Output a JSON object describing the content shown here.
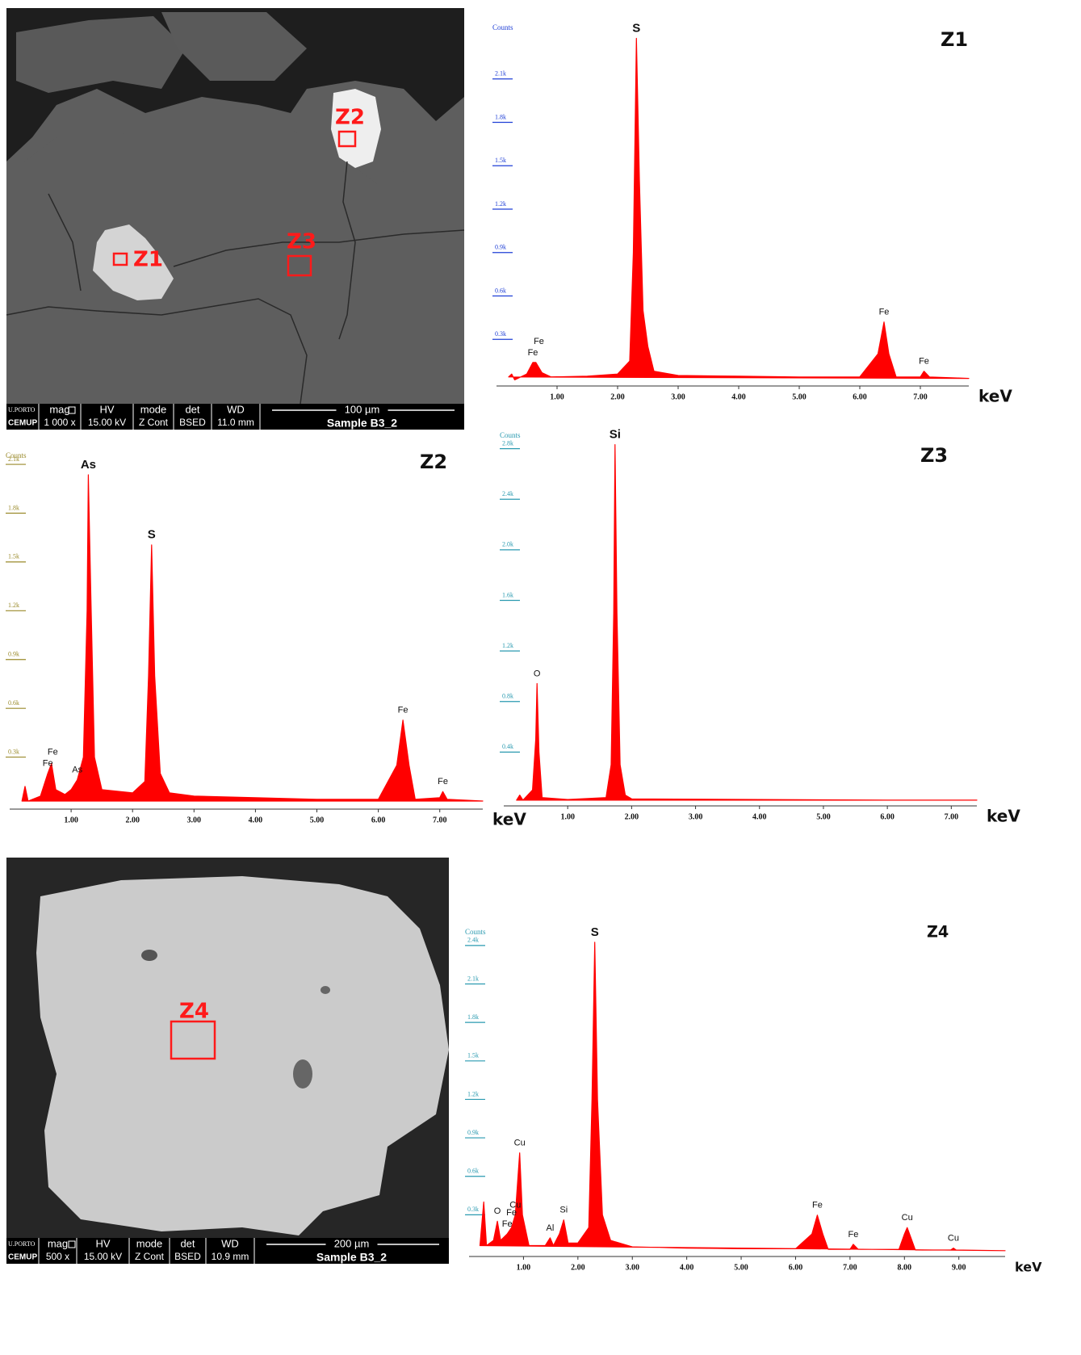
{
  "images": [
    {
      "zones": [
        "Z1",
        "Z2",
        "Z3"
      ],
      "info": {
        "logo": "U.PORTO",
        "lab": "CEMUP",
        "headers": [
          "mag",
          "HV",
          "mode",
          "det",
          "WD"
        ],
        "values": [
          "1 000 x",
          "15.00 kV",
          "Z Cont",
          "BSED",
          "11.0 mm"
        ],
        "scale": "100 µm",
        "sample": "Sample B3_2"
      }
    },
    {
      "zones": [
        "Z4"
      ],
      "info": {
        "logo": "U.PORTO",
        "lab": "CEMUP",
        "headers": [
          "mag",
          "HV",
          "mode",
          "det",
          "WD"
        ],
        "values": [
          "500 x",
          "15.00 kV",
          "Z Cont",
          "BSED",
          "10.9 mm"
        ],
        "scale": "200 µm",
        "sample": "Sample B3_2"
      }
    }
  ],
  "chart_data": [
    {
      "type": "area",
      "title": "Z1",
      "x_label": "keV",
      "y_label": "Counts",
      "color": "#ff0000",
      "tick_color": "#1f3fd6",
      "x": [
        0.2,
        0.25,
        0.3,
        0.5,
        0.6,
        0.65,
        0.75,
        0.9,
        1.5,
        2.0,
        2.2,
        2.26,
        2.31,
        2.36,
        2.42,
        2.5,
        2.6,
        3.0,
        4.0,
        5.0,
        6.0,
        6.3,
        6.4,
        6.48,
        6.6,
        7.0,
        7.06,
        7.15,
        7.8
      ],
      "values": [
        40,
        60,
        20,
        60,
        140,
        140,
        70,
        40,
        45,
        60,
        150,
        900,
        2380,
        1400,
        500,
        250,
        80,
        50,
        45,
        40,
        40,
        200,
        420,
        200,
        40,
        40,
        80,
        40,
        30
      ],
      "xlim": [
        0,
        7.8
      ],
      "ylim": [
        0,
        2450
      ],
      "xticks": [
        {
          "value": 1,
          "label": "1.00"
        },
        {
          "value": 2,
          "label": "2.00"
        },
        {
          "value": 3,
          "label": "3.00"
        },
        {
          "value": 4,
          "label": "4.00"
        },
        {
          "value": 5,
          "label": "5.00"
        },
        {
          "value": 6,
          "label": "6.00"
        },
        {
          "value": 7,
          "label": "7.00"
        }
      ],
      "yticks": [
        {
          "value": 300,
          "label": "0.3k"
        },
        {
          "value": 600,
          "label": "0.6k"
        },
        {
          "value": 900,
          "label": "0.9k"
        },
        {
          "value": 1200,
          "label": "1.2k"
        },
        {
          "value": 1500,
          "label": "1.5k"
        },
        {
          "value": 1800,
          "label": "1.8k"
        },
        {
          "value": 2100,
          "label": "2.1k"
        }
      ],
      "annotations": [
        {
          "text": "S",
          "x": 2.31
        },
        {
          "text": "Fe",
          "x": 0.6
        },
        {
          "text": "Fe",
          "x": 0.7
        },
        {
          "text": "Fe",
          "x": 6.4
        },
        {
          "text": "Fe",
          "x": 7.06
        }
      ]
    },
    {
      "type": "area",
      "title": "Z2",
      "x_label": "keV",
      "y_label": "Counts",
      "color": "#ff0000",
      "tick_color": "#9a8a2a",
      "x": [
        0.2,
        0.25,
        0.3,
        0.5,
        0.62,
        0.68,
        0.75,
        0.9,
        1.0,
        1.1,
        1.2,
        1.26,
        1.28,
        1.32,
        1.38,
        1.5,
        2.0,
        2.2,
        2.26,
        2.31,
        2.36,
        2.45,
        2.6,
        3.0,
        4.0,
        5.0,
        6.0,
        6.3,
        6.4,
        6.5,
        6.6,
        7.0,
        7.05,
        7.12,
        7.7
      ],
      "values": [
        30,
        120,
        30,
        60,
        200,
        260,
        100,
        70,
        100,
        160,
        300,
        1200,
        2036,
        1300,
        300,
        100,
        80,
        150,
        800,
        1605,
        800,
        200,
        80,
        60,
        50,
        40,
        40,
        250,
        528,
        250,
        40,
        50,
        88,
        40,
        30
      ],
      "xlim": [
        0,
        7.7
      ],
      "ylim": [
        0,
        2150
      ],
      "xticks": [
        {
          "value": 1,
          "label": "1.00"
        },
        {
          "value": 2,
          "label": "2.00"
        },
        {
          "value": 3,
          "label": "3.00"
        },
        {
          "value": 4,
          "label": "4.00"
        },
        {
          "value": 5,
          "label": "5.00"
        },
        {
          "value": 6,
          "label": "6.00"
        },
        {
          "value": 7,
          "label": "7.00"
        }
      ],
      "yticks": [
        {
          "value": 300,
          "label": "0.3k"
        },
        {
          "value": 600,
          "label": "0.6k"
        },
        {
          "value": 900,
          "label": "0.9k"
        },
        {
          "value": 1200,
          "label": "1.2k"
        },
        {
          "value": 1500,
          "label": "1.5k"
        },
        {
          "value": 1800,
          "label": "1.8k"
        },
        {
          "value": 2100,
          "label": "2.1k"
        }
      ],
      "annotations": [
        {
          "text": "As",
          "x": 1.28
        },
        {
          "text": "S",
          "x": 2.31
        },
        {
          "text": "Fe",
          "x": 0.62
        },
        {
          "text": "Fe",
          "x": 0.7
        },
        {
          "text": "As",
          "x": 1.1
        },
        {
          "text": "Fe",
          "x": 6.4
        },
        {
          "text": "Fe",
          "x": 7.05
        }
      ]
    },
    {
      "type": "area",
      "title": "Z3",
      "x_label": "keV",
      "y_label": "Counts",
      "color": "#ff0000",
      "tick_color": "#2a9ab0",
      "x": [
        0.2,
        0.25,
        0.3,
        0.45,
        0.5,
        0.52,
        0.55,
        0.6,
        1.0,
        1.6,
        1.68,
        1.72,
        1.74,
        1.77,
        1.82,
        1.9,
        2.0,
        4.0,
        6.0,
        7.4
      ],
      "values": [
        20,
        60,
        20,
        100,
        500,
        942,
        400,
        40,
        25,
        40,
        300,
        1500,
        2832,
        1500,
        300,
        60,
        30,
        25,
        20,
        20
      ],
      "xlim": [
        0,
        7.4
      ],
      "ylim": [
        0,
        2900
      ],
      "xticks": [
        {
          "value": 1,
          "label": "1.00"
        },
        {
          "value": 2,
          "label": "2.00"
        },
        {
          "value": 3,
          "label": "3.00"
        },
        {
          "value": 4,
          "label": "4.00"
        },
        {
          "value": 5,
          "label": "5.00"
        },
        {
          "value": 6,
          "label": "6.00"
        },
        {
          "value": 7,
          "label": "7.00"
        }
      ],
      "yticks": [
        {
          "value": 400,
          "label": "0.4k"
        },
        {
          "value": 800,
          "label": "0.8k"
        },
        {
          "value": 1200,
          "label": "1.2k"
        },
        {
          "value": 1600,
          "label": "1.6k"
        },
        {
          "value": 2000,
          "label": "2.0k"
        },
        {
          "value": 2400,
          "label": "2.4k"
        },
        {
          "value": 2800,
          "label": "2.8k"
        }
      ],
      "annotations": [
        {
          "text": "Si",
          "x": 1.74
        },
        {
          "text": "O",
          "x": 0.52
        }
      ]
    },
    {
      "type": "area",
      "title": "Z4",
      "x_label": "keV",
      "y_label": "Counts",
      "color": "#ff0000",
      "tick_color": "#2a9ab0",
      "x": [
        0.2,
        0.27,
        0.32,
        0.45,
        0.52,
        0.58,
        0.7,
        0.78,
        0.85,
        0.93,
        0.98,
        1.1,
        1.4,
        1.49,
        1.55,
        1.66,
        1.74,
        1.82,
        2.0,
        2.2,
        2.26,
        2.31,
        2.36,
        2.45,
        2.6,
        3.0,
        4.0,
        5.0,
        6.0,
        6.3,
        6.4,
        6.5,
        6.6,
        7.0,
        7.06,
        7.15,
        7.9,
        8.0,
        8.05,
        8.12,
        8.2,
        8.85,
        8.9,
        8.95,
        9.85
      ],
      "values": [
        60,
        400,
        60,
        100,
        250,
        100,
        150,
        200,
        300,
        783,
        300,
        60,
        60,
        120,
        60,
        150,
        260,
        80,
        80,
        200,
        1200,
        2425,
        1200,
        300,
        100,
        50,
        40,
        35,
        35,
        150,
        297,
        150,
        30,
        30,
        70,
        30,
        30,
        150,
        200,
        120,
        25,
        25,
        40,
        25,
        20
      ],
      "xlim": [
        0,
        9.85
      ],
      "ylim": [
        0,
        2500
      ],
      "xticks": [
        {
          "value": 1,
          "label": "1.00"
        },
        {
          "value": 2,
          "label": "2.00"
        },
        {
          "value": 3,
          "label": "3.00"
        },
        {
          "value": 4,
          "label": "4.00"
        },
        {
          "value": 5,
          "label": "5.00"
        },
        {
          "value": 6,
          "label": "6.00"
        },
        {
          "value": 7,
          "label": "7.00"
        },
        {
          "value": 8,
          "label": "8.00"
        },
        {
          "value": 9,
          "label": "9.00"
        }
      ],
      "yticks": [
        {
          "value": 300,
          "label": "0.3k"
        },
        {
          "value": 600,
          "label": "0.6k"
        },
        {
          "value": 900,
          "label": "0.9k"
        },
        {
          "value": 1200,
          "label": "1.2k"
        },
        {
          "value": 1500,
          "label": "1.5k"
        },
        {
          "value": 1800,
          "label": "1.8k"
        },
        {
          "value": 2100,
          "label": "2.1k"
        },
        {
          "value": 2400,
          "label": "2.4k"
        }
      ],
      "annotations": [
        {
          "text": "S",
          "x": 2.31
        },
        {
          "text": "Cu",
          "x": 0.93
        },
        {
          "text": "Cu",
          "x": 0.85
        },
        {
          "text": "Fe",
          "x": 0.7
        },
        {
          "text": "Fe",
          "x": 0.78
        },
        {
          "text": "O",
          "x": 0.52
        },
        {
          "text": "Al",
          "x": 1.49
        },
        {
          "text": "Si",
          "x": 1.74
        },
        {
          "text": "Fe",
          "x": 6.4
        },
        {
          "text": "Fe",
          "x": 7.06
        },
        {
          "text": "Cu",
          "x": 8.05
        },
        {
          "text": "Cu",
          "x": 8.9
        }
      ]
    }
  ]
}
